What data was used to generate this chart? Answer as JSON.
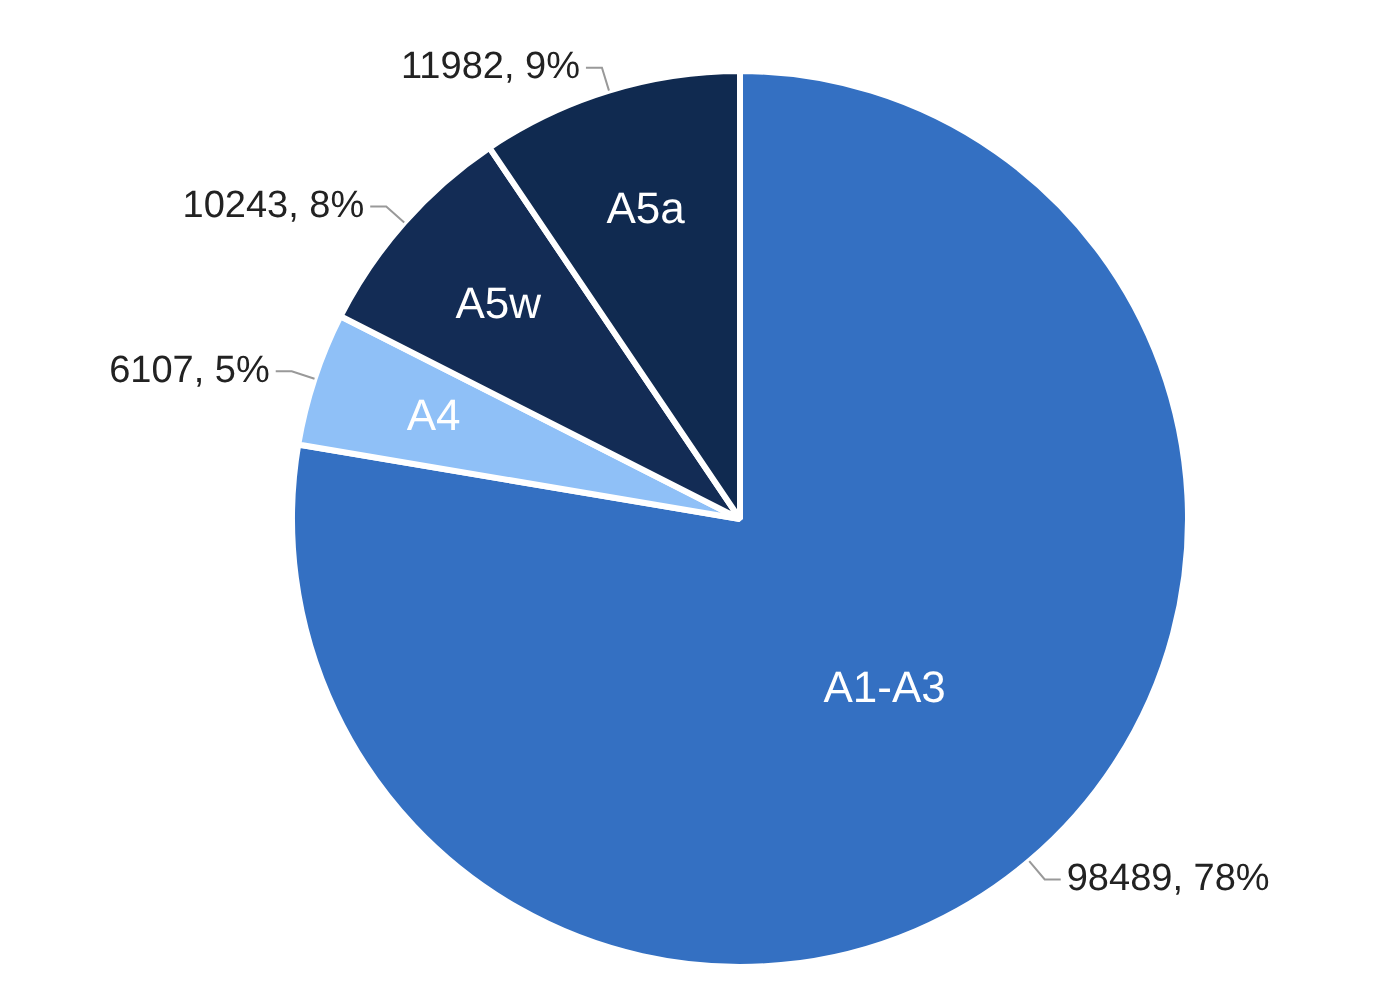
{
  "chart_data": {
    "type": "pie",
    "categories": [
      "A1-A3",
      "A4",
      "A5w",
      "A5a"
    ],
    "values": [
      98489,
      6107,
      10243,
      11982
    ],
    "colors": [
      "#3470c2",
      "#8fc0f7",
      "#132c55",
      "#102a50"
    ],
    "value_labels": [
      "98489, 78%",
      "6107, 5%",
      "10243, 8%",
      "11982, 9%"
    ],
    "legend": false
  }
}
